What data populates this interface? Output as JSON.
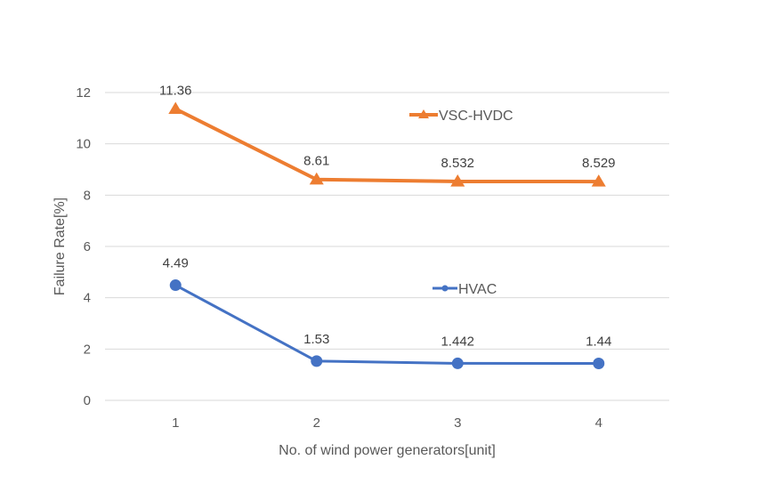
{
  "chart_data": {
    "type": "line",
    "title": "",
    "xlabel": "No. of wind power generators[unit]",
    "ylabel": "Failure Rate[%]",
    "ylim": [
      0,
      12
    ],
    "yticks": [
      0,
      2,
      4,
      6,
      8,
      10,
      12
    ],
    "categories": [
      "1",
      "2",
      "3",
      "4"
    ],
    "grid": true,
    "legend": "inline",
    "series": [
      {
        "name": "VSC-HVDC",
        "values": [
          11.36,
          8.61,
          8.532,
          8.529
        ],
        "labels": [
          "11.36",
          "8.61",
          "8.532",
          "8.529"
        ],
        "color": "#ed7d31",
        "marker": "triangle"
      },
      {
        "name": "HVAC",
        "values": [
          4.49,
          1.53,
          1.442,
          1.44
        ],
        "labels": [
          "4.49",
          "1.53",
          "1.442",
          "1.44"
        ],
        "color": "#4472c4",
        "marker": "circle"
      }
    ]
  }
}
